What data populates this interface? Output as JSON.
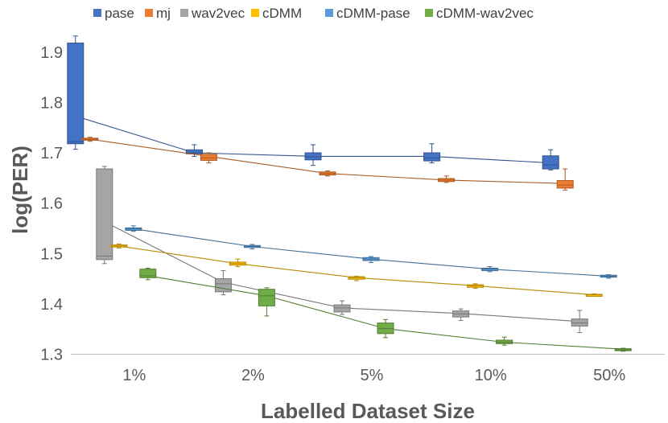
{
  "chart_data": {
    "type": "box",
    "title": "",
    "xlabel": "Labelled Dataset Size",
    "ylabel": "log(PER)",
    "ylim": [
      1.3,
      1.95
    ],
    "yticks": [
      "1.3",
      "1.4",
      "1.5",
      "1.6",
      "1.7",
      "1.8",
      "1.9"
    ],
    "categories": [
      "1%",
      "2%",
      "5%",
      "10%",
      "50%"
    ],
    "legend_position": "top",
    "series": [
      {
        "name": "pase",
        "color": "#4472C4",
        "boxes": [
          {
            "min": 1.707,
            "q1": 1.718,
            "median": 1.722,
            "q3": 1.918,
            "max": 1.932
          },
          {
            "min": 1.693,
            "q1": 1.698,
            "median": 1.7,
            "q3": 1.706,
            "max": 1.716
          },
          {
            "min": 1.675,
            "q1": 1.686,
            "median": 1.692,
            "q3": 1.7,
            "max": 1.716
          },
          {
            "min": 1.68,
            "q1": 1.684,
            "median": 1.69,
            "q3": 1.7,
            "max": 1.718
          },
          {
            "min": 1.666,
            "q1": 1.668,
            "median": 1.676,
            "q3": 1.694,
            "max": 1.706
          }
        ],
        "trend": [
          1.773,
          1.7,
          1.693,
          1.693,
          1.68
        ]
      },
      {
        "name": "mj",
        "color": "#ED7D31",
        "boxes": [
          {
            "min": 1.723,
            "q1": 1.725,
            "median": 1.727,
            "q3": 1.729,
            "max": 1.731
          },
          {
            "min": 1.68,
            "q1": 1.685,
            "median": 1.69,
            "q3": 1.697,
            "max": 1.7
          },
          {
            "min": 1.654,
            "q1": 1.656,
            "median": 1.659,
            "q3": 1.662,
            "max": 1.664
          },
          {
            "min": 1.641,
            "q1": 1.643,
            "median": 1.646,
            "q3": 1.649,
            "max": 1.654
          },
          {
            "min": 1.626,
            "q1": 1.63,
            "median": 1.636,
            "q3": 1.645,
            "max": 1.668
          }
        ],
        "trend": [
          1.727,
          1.693,
          1.659,
          1.646,
          1.639
        ]
      },
      {
        "name": "wav2vec",
        "color": "#A5A5A5",
        "boxes": [
          {
            "min": 1.48,
            "q1": 1.488,
            "median": 1.495,
            "q3": 1.668,
            "max": 1.673
          },
          {
            "min": 1.418,
            "q1": 1.424,
            "median": 1.44,
            "q3": 1.45,
            "max": 1.466
          },
          {
            "min": 1.379,
            "q1": 1.384,
            "median": 1.392,
            "q3": 1.398,
            "max": 1.406
          },
          {
            "min": 1.367,
            "q1": 1.374,
            "median": 1.38,
            "q3": 1.386,
            "max": 1.39
          },
          {
            "min": 1.343,
            "q1": 1.356,
            "median": 1.362,
            "q3": 1.37,
            "max": 1.387
          }
        ],
        "trend": [
          1.563,
          1.443,
          1.392,
          1.381,
          1.365
        ]
      },
      {
        "name": "cDMM",
        "color": "#FFC000",
        "boxes": [
          {
            "min": 1.511,
            "q1": 1.513,
            "median": 1.515,
            "q3": 1.517,
            "max": 1.519
          },
          {
            "min": 1.474,
            "q1": 1.477,
            "median": 1.48,
            "q3": 1.483,
            "max": 1.489
          },
          {
            "min": 1.446,
            "q1": 1.449,
            "median": 1.452,
            "q3": 1.454,
            "max": 1.455
          },
          {
            "min": 1.431,
            "q1": 1.433,
            "median": 1.436,
            "q3": 1.438,
            "max": 1.44
          },
          {
            "min": 1.415,
            "q1": 1.416,
            "median": 1.418,
            "q3": 1.419,
            "max": 1.42
          }
        ],
        "trend": [
          1.515,
          1.48,
          1.452,
          1.436,
          1.418
        ]
      },
      {
        "name": "cDMM-pase",
        "color": "#5B9BD5",
        "boxes": [
          {
            "min": 1.544,
            "q1": 1.546,
            "median": 1.549,
            "q3": 1.551,
            "max": 1.555
          },
          {
            "min": 1.509,
            "q1": 1.512,
            "median": 1.514,
            "q3": 1.516,
            "max": 1.518
          },
          {
            "min": 1.482,
            "q1": 1.486,
            "median": 1.489,
            "q3": 1.492,
            "max": 1.494
          },
          {
            "min": 1.464,
            "q1": 1.466,
            "median": 1.469,
            "q3": 1.471,
            "max": 1.474
          },
          {
            "min": 1.451,
            "q1": 1.453,
            "median": 1.455,
            "q3": 1.457,
            "max": 1.458
          }
        ],
        "trend": [
          1.549,
          1.514,
          1.489,
          1.469,
          1.455
        ]
      },
      {
        "name": "cDMM-wav2vec",
        "color": "#70AD47",
        "boxes": [
          {
            "min": 1.448,
            "q1": 1.452,
            "median": 1.456,
            "q3": 1.469,
            "max": 1.471
          },
          {
            "min": 1.376,
            "q1": 1.396,
            "median": 1.416,
            "q3": 1.429,
            "max": 1.432
          },
          {
            "min": 1.333,
            "q1": 1.341,
            "median": 1.351,
            "q3": 1.362,
            "max": 1.369
          },
          {
            "min": 1.318,
            "q1": 1.321,
            "median": 1.324,
            "q3": 1.328,
            "max": 1.334
          },
          {
            "min": 1.306,
            "q1": 1.307,
            "median": 1.309,
            "q3": 1.311,
            "max": 1.312
          }
        ],
        "trend": [
          1.456,
          1.416,
          1.351,
          1.324,
          1.31
        ]
      }
    ]
  }
}
